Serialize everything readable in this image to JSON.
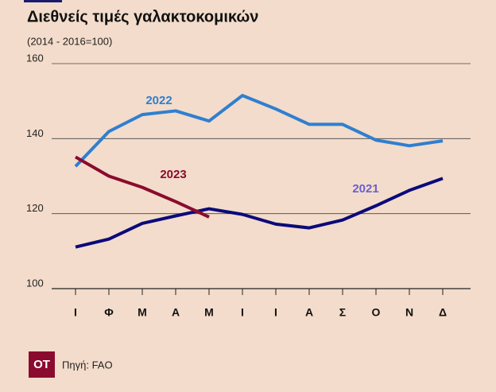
{
  "chart_data": {
    "type": "line",
    "title": "Διεθνείς τιμές γαλακτοκομικών",
    "subtitle": "(2014 - 2016=100)",
    "categories": [
      "Ι",
      "Φ",
      "Μ",
      "Α",
      "Μ",
      "Ι",
      "Ι",
      "Α",
      "Σ",
      "Ο",
      "Ν",
      "Δ"
    ],
    "series": [
      {
        "name": "2021",
        "color": "#0b0a7a",
        "label_color": "#6a5fd0",
        "values": [
          111.1,
          113.2,
          117.4,
          119.4,
          121.3,
          119.8,
          117.2,
          116.2,
          118.3,
          122.1,
          126.2,
          129.4
        ]
      },
      {
        "name": "2022",
        "color": "#2f7fd0",
        "label_color": "#2f7fd0",
        "values": [
          132.6,
          141.9,
          146.4,
          147.4,
          144.7,
          151.5,
          147.9,
          143.8,
          143.8,
          139.6,
          138.1,
          139.4
        ]
      },
      {
        "name": "2023",
        "color": "#8a0b2e",
        "label_color": "#8a0b2e",
        "values": [
          135.1,
          130,
          127,
          123.2,
          119.1,
          null,
          null,
          null,
          null,
          null,
          null,
          null
        ]
      }
    ],
    "ylim": [
      100,
      160
    ],
    "yticks": [
      100,
      120,
      140,
      160
    ],
    "grid": true
  },
  "logo": "OT",
  "source": "Πηγή: FAO"
}
